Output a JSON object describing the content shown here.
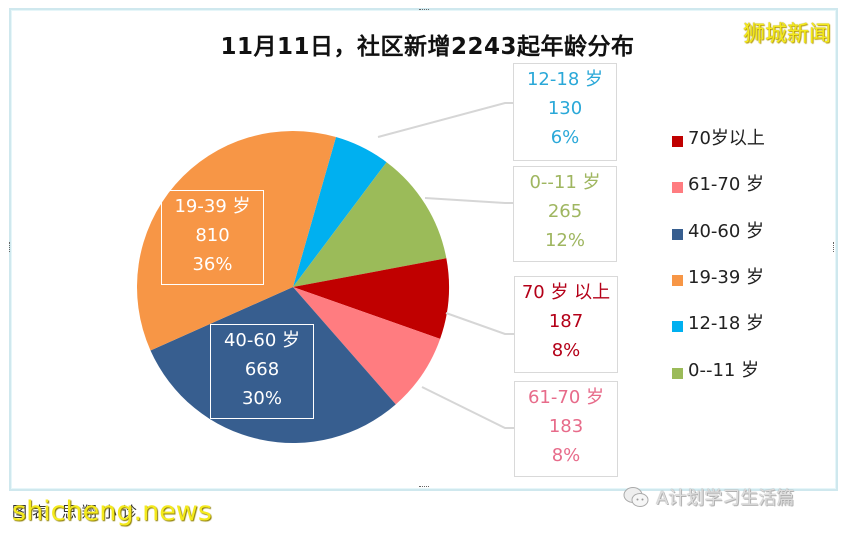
{
  "chart_data": {
    "type": "pie",
    "title": "11月11日，社区新增2243起年龄分布",
    "total": 2243,
    "categories": [
      "70岁以上",
      "61-70 岁",
      "40-60 岁",
      "19-39 岁",
      "12-18 岁",
      "0--11 岁"
    ],
    "values": [
      187,
      183,
      668,
      810,
      130,
      265
    ],
    "percentages": [
      "8%",
      "8%",
      "30%",
      "36%",
      "6%",
      "12%"
    ],
    "colors": [
      "#c00000",
      "#ff7c80",
      "#375e8f",
      "#f79646",
      "#00b0f0",
      "#9bbb59"
    ],
    "legend_position": "right"
  },
  "brand": {
    "top_right": "狮城新闻",
    "bottom_left": "shicheng.news",
    "bottom_left_underlay": "图表 思翔小诊",
    "bottom_right": "A计划学习生活篇"
  },
  "labels": {
    "age_12_18": {
      "name": "12-18 岁",
      "value": "130",
      "pct": "6%"
    },
    "age_0_11": {
      "name": "0--11 岁",
      "value": "265",
      "pct": "12%"
    },
    "age_70_plus": {
      "name": "70 岁 以上",
      "value": "187",
      "pct": "8%"
    },
    "age_61_70": {
      "name": "61-70 岁",
      "value": "183",
      "pct": "8%"
    },
    "age_19_39": {
      "name": "19-39 岁",
      "value": "810",
      "pct": "36%"
    },
    "age_40_60": {
      "name": "40-60 岁",
      "value": "668",
      "pct": "30%"
    }
  },
  "legend": [
    {
      "label": "70岁以上",
      "color": "#c00000"
    },
    {
      "label": "61-70 岁",
      "color": "#ff7c80"
    },
    {
      "label": "40-60 岁",
      "color": "#375e8f"
    },
    {
      "label": "19-39 岁",
      "color": "#f79646"
    },
    {
      "label": "12-18 岁",
      "color": "#00b0f0"
    },
    {
      "label": "0--11 岁",
      "color": "#9bbb59"
    }
  ]
}
